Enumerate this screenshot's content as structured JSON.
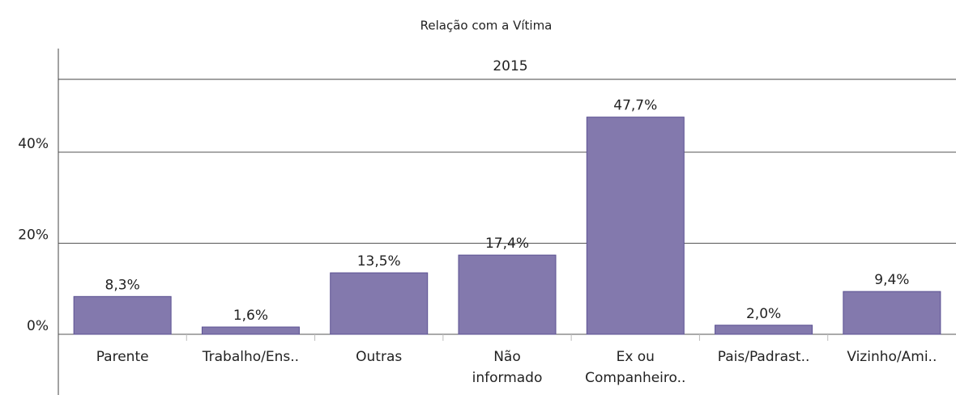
{
  "chart_data": {
    "type": "bar",
    "title": "Relação com a Vítima",
    "subtitle": "2015",
    "categories": [
      "Parente",
      "Trabalho/Ens..",
      "Outras",
      "Não\ninformado",
      "Ex ou\nCompanheiro..",
      "Pais/Padrast..",
      "Vizinho/Ami.."
    ],
    "values": [
      8.3,
      1.6,
      13.5,
      17.4,
      47.7,
      2.0,
      9.4
    ],
    "value_labels": [
      "8,3%",
      "1,6%",
      "13,5%",
      "17,4%",
      "47,7%",
      "2,0%",
      "9,4%"
    ],
    "color": "#8379ad",
    "ylim": [
      0,
      56
    ],
    "yticks": [
      {
        "value": 0,
        "label": "0%"
      },
      {
        "value": 20,
        "label": "20%"
      },
      {
        "value": 40,
        "label": "40%"
      }
    ],
    "grid": true
  }
}
